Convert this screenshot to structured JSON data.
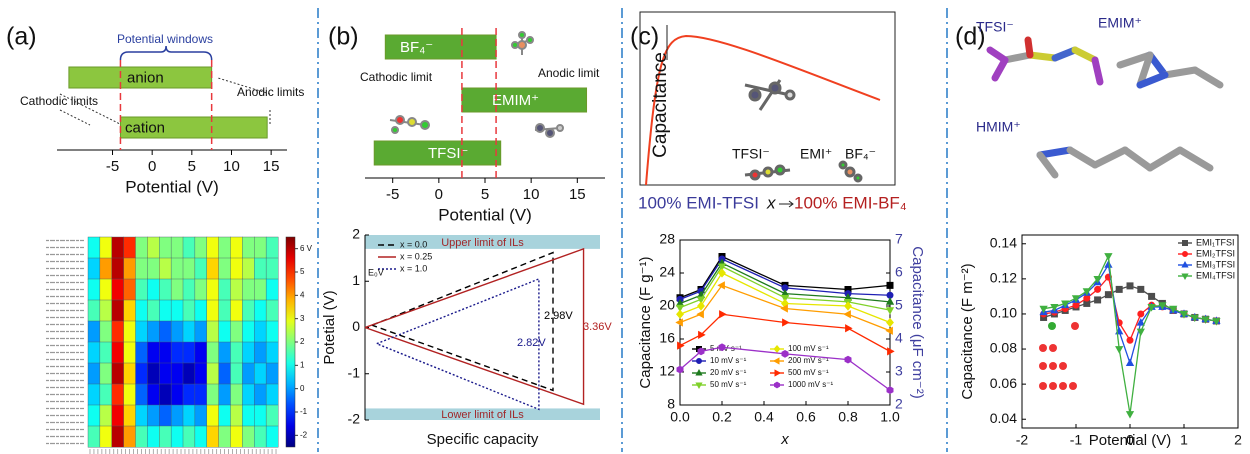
{
  "chart_data": [
    {
      "type": "rangebar",
      "panel": "(a)",
      "title": "Potential windows",
      "categories": [
        "anion",
        "cation"
      ],
      "starts": [
        -10.5,
        -4
      ],
      "ends": [
        7.5,
        14.5
      ],
      "color": "#8cc63f",
      "limits": [
        -4,
        7.5
      ],
      "limit_color": "#e8383d",
      "annotations": [
        "Cathodic limits",
        "Anodic limits"
      ],
      "xlabel": "Potential (V)",
      "xlim": [
        -12,
        17
      ],
      "xticks": [
        -5,
        0,
        5,
        10,
        15
      ]
    },
    {
      "type": "heatmap",
      "values": [
        [
          1,
          3,
          6,
          5,
          2,
          2.5,
          2,
          2,
          1.5,
          2,
          3,
          2,
          3,
          2,
          2,
          1.5
        ],
        [
          0.5,
          4,
          6,
          4,
          2,
          2,
          2.5,
          2,
          2,
          1.5,
          3.5,
          2,
          3,
          2.5,
          1.5,
          1.5
        ],
        [
          1,
          3,
          5.5,
          4.5,
          1.5,
          1,
          1.5,
          2,
          1.5,
          2,
          3,
          1.5,
          2.5,
          2,
          2,
          1
        ],
        [
          1.5,
          2.5,
          6,
          3.5,
          1,
          1.5,
          1,
          1,
          1.5,
          1,
          3,
          1.5,
          3,
          1.5,
          1,
          1.5
        ],
        [
          0,
          2,
          5,
          3,
          0.5,
          0,
          -0.5,
          0,
          0.5,
          0,
          2.5,
          1,
          2,
          1,
          0.5,
          1
        ],
        [
          0.5,
          1.5,
          5.5,
          3,
          -0.5,
          -1.5,
          -1.5,
          -1,
          -1,
          -1.5,
          2,
          0,
          1.5,
          0.5,
          0,
          0.5
        ],
        [
          0,
          2,
          6,
          3.5,
          -1,
          -2,
          -1.5,
          -1.5,
          -2,
          -1.5,
          2.5,
          -0.5,
          1.5,
          0,
          0.5,
          0
        ],
        [
          0.5,
          1.5,
          5,
          3,
          -0.5,
          -1.5,
          -2,
          -1.5,
          -1,
          -1,
          2,
          0,
          2,
          0.5,
          0,
          0.5
        ],
        [
          1,
          2.5,
          5.5,
          3.5,
          0.5,
          0,
          -0.5,
          0,
          0.5,
          0,
          3,
          1,
          2.5,
          1,
          1,
          1.5
        ],
        [
          1.5,
          3,
          6,
          4,
          1.5,
          1,
          1.5,
          1,
          1.5,
          1,
          3.5,
          2,
          3,
          2,
          1.5,
          1
        ]
      ],
      "colorbar_lim": [
        -2.5,
        6.5
      ],
      "colorbar_ticks": [
        {
          "value": 6,
          "label": "6 V"
        },
        5,
        4,
        3,
        2,
        1,
        0,
        -1,
        -2
      ]
    },
    {
      "type": "rangebar",
      "panel": "(b)",
      "categories": [
        "BF₄⁻",
        "EMIM⁺",
        "TFSI⁻"
      ],
      "starts": [
        -5.8,
        2.5,
        -7
      ],
      "ends": [
        6.2,
        16,
        6.7
      ],
      "color": "#5aaa32",
      "limits": [
        2.5,
        6.2
      ],
      "limit_color": "#e8383d",
      "annotations": [
        "Cathodic limit",
        "Anodic limit"
      ],
      "xlabel": "Potential (V)",
      "xlim": [
        -8,
        18
      ],
      "xticks": [
        -5,
        0,
        5,
        10,
        15
      ]
    },
    {
      "type": "line",
      "xlim": [
        0,
        10
      ],
      "ylim": [
        -2,
        2
      ],
      "yticks": [
        2,
        1,
        0,
        -1,
        -2
      ],
      "ylabel": "Potetial (V)",
      "xlabel": "Specific capacity",
      "bands": [
        {
          "label": "Upper limit of ILs",
          "range": [
            1.7,
            2
          ]
        },
        {
          "label": "Lower limit of ILs",
          "range": [
            -2,
            -1.75
          ]
        }
      ],
      "annotations": [
        "E₀V",
        "2.98V",
        "3.36V",
        "2.82V"
      ],
      "series": [
        {
          "name": "x = 0.0",
          "color": "#000000",
          "style": "dashed",
          "x": [
            0.3,
            8.0,
            8.0,
            0.3
          ],
          "values": [
            0.05,
            1.62,
            -1.36,
            0.05
          ]
        },
        {
          "name": "x = 0.25",
          "color": "#b22222",
          "style": "solid",
          "x": [
            0,
            9.3,
            9.3,
            0
          ],
          "values": [
            0,
            1.7,
            -1.66,
            0
          ]
        },
        {
          "name": "x = 1.0",
          "color": "#1a1a8c",
          "style": "dotted",
          "x": [
            0.5,
            7.4,
            7.4,
            0.5
          ],
          "values": [
            -0.35,
            1.05,
            -1.77,
            -0.35
          ]
        }
      ]
    },
    {
      "type": "schematic",
      "panel": "(c)",
      "ylabel": "Capacitance",
      "labels": [
        "TFSI⁻",
        "EMI⁺",
        "BF₄⁻"
      ],
      "xlabel_left": "100% EMI-TFSI",
      "xlabel_mid": "x",
      "xlabel_right": "100% EMI-BF₄"
    },
    {
      "type": "line",
      "x": [
        0,
        0.1,
        0.2,
        0.5,
        0.8,
        1.0
      ],
      "xlim": [
        0,
        1
      ],
      "xticks": [
        {
          "value": 0,
          "label": "0.0"
        },
        0.2,
        0.4,
        0.6,
        0.8,
        {
          "value": 1,
          "label": "1.0"
        }
      ],
      "ylim": [
        8,
        28
      ],
      "yticks": [
        8,
        12,
        16,
        20,
        24,
        28
      ],
      "y2lim": [
        2,
        7
      ],
      "y2ticks": [
        2,
        3,
        4,
        5,
        6,
        7
      ],
      "xlabel": "x",
      "ylabel": "Capacitance (F g⁻¹)",
      "y2label": "Capacitance (μF cm⁻²)",
      "series": [
        {
          "name": "5 mV s⁻¹",
          "color": "#000000",
          "marker": "square",
          "values": [
            21,
            22,
            26,
            22.5,
            22,
            22.5
          ]
        },
        {
          "name": "10 mV s⁻¹",
          "color": "#1f1fb4",
          "marker": "circle",
          "values": [
            20.8,
            21.8,
            25.7,
            22.2,
            21.5,
            21.3
          ]
        },
        {
          "name": "20 mV s⁻¹",
          "color": "#1e7a1e",
          "marker": "triangle-up",
          "values": [
            20.3,
            21.3,
            25.2,
            21.5,
            21,
            20.5
          ]
        },
        {
          "name": "50 mV s⁻¹",
          "color": "#7fd12a",
          "marker": "triangle-down",
          "values": [
            19.8,
            20.8,
            24.8,
            21,
            20.5,
            19.5
          ]
        },
        {
          "name": "100 mV s⁻¹",
          "color": "#e6e600",
          "marker": "diamond",
          "values": [
            19,
            20,
            24,
            20.3,
            20,
            18
          ]
        },
        {
          "name": "200 mV s⁻¹",
          "color": "#ff9d00",
          "marker": "triangle-left",
          "values": [
            18,
            19,
            22.5,
            19.7,
            19,
            17
          ]
        },
        {
          "name": "500 mV s⁻¹",
          "color": "#ff2a00",
          "marker": "triangle-right",
          "values": [
            15.2,
            16.5,
            19,
            18,
            17.3,
            14.5
          ]
        },
        {
          "name": "1000 mV s⁻¹",
          "color": "#9b30c8",
          "marker": "hexagon",
          "values": [
            12.3,
            14.5,
            15,
            14.2,
            13.5,
            9.8
          ]
        }
      ]
    },
    {
      "type": "molecules",
      "panel": "(d)",
      "labels": [
        "TFSI⁻",
        "EMIM⁺",
        "HMIM⁺"
      ]
    },
    {
      "type": "line",
      "x": [
        -1.6,
        -1.4,
        -1.2,
        -1.0,
        -0.8,
        -0.6,
        -0.4,
        -0.2,
        0,
        0.2,
        0.4,
        0.6,
        0.8,
        1.0,
        1.2,
        1.4,
        1.6
      ],
      "xlim": [
        -2,
        2
      ],
      "xticks": [
        -2,
        -1,
        0,
        1,
        2
      ],
      "ylim": [
        0.035,
        0.145
      ],
      "yticks": [
        0.04,
        0.06,
        0.08,
        {
          "value": 0.1,
          "label": "0.10"
        },
        0.12,
        0.14
      ],
      "xlabel": "Potential (V)",
      "ylabel": "Capacitance (F m⁻²)",
      "series": [
        {
          "name": "EMI₁TFSI",
          "color": "#4d4d4d",
          "marker": "square",
          "values": [
            0.098,
            0.1,
            0.102,
            0.104,
            0.106,
            0.108,
            0.111,
            0.114,
            0.116,
            0.114,
            0.11,
            0.106,
            0.102,
            0.1,
            0.098,
            0.097,
            0.096
          ]
        },
        {
          "name": "EMI₂TFSI",
          "color": "#ff2020",
          "marker": "circle",
          "values": [
            0.1,
            0.101,
            0.103,
            0.105,
            0.109,
            0.114,
            0.121,
            0.095,
            0.085,
            0.1,
            0.105,
            0.104,
            0.102,
            0.1,
            0.098,
            0.097,
            0.096
          ]
        },
        {
          "name": "EMI₃TFSI",
          "color": "#2050e0",
          "marker": "triangle-up",
          "values": [
            0.101,
            0.102,
            0.105,
            0.108,
            0.112,
            0.118,
            0.128,
            0.09,
            0.072,
            0.095,
            0.104,
            0.104,
            0.102,
            0.1,
            0.098,
            0.097,
            0.096
          ]
        },
        {
          "name": "EMI₄TFSI",
          "color": "#40b040",
          "marker": "triangle-down",
          "values": [
            0.103,
            0.104,
            0.106,
            0.109,
            0.113,
            0.12,
            0.133,
            0.08,
            0.043,
            0.09,
            0.104,
            0.105,
            0.103,
            0.1,
            0.098,
            0.097,
            0.096
          ]
        }
      ]
    }
  ]
}
